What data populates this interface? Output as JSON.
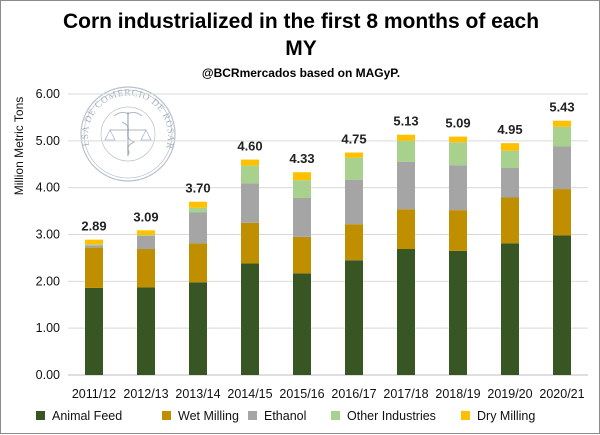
{
  "chart_data": {
    "type": "bar",
    "stacked": true,
    "title_lines": [
      "Corn industrialized in the first 8 months of each",
      "MY"
    ],
    "subtitle": "@BCRmercados based on MAGyP.",
    "xlabel": "",
    "ylabel": "Million Metric Tons",
    "ylim": [
      0,
      6
    ],
    "yticks": [
      "0.00",
      "1.00",
      "2.00",
      "3.00",
      "4.00",
      "5.00",
      "6.00"
    ],
    "grid": true,
    "legend_position": "bottom",
    "categories": [
      "2011/12",
      "2012/13",
      "2013/14",
      "2014/15",
      "2015/16",
      "2016/17",
      "2017/18",
      "2018/19",
      "2019/20",
      "2020/21"
    ],
    "series": [
      {
        "name": "Animal Feed",
        "color": "#375623",
        "values": [
          1.86,
          1.87,
          1.98,
          2.38,
          2.17,
          2.45,
          2.69,
          2.65,
          2.81,
          2.98
        ]
      },
      {
        "name": "Wet Milling",
        "color": "#bf8f00",
        "values": [
          0.86,
          0.82,
          0.83,
          0.87,
          0.78,
          0.77,
          0.85,
          0.87,
          0.98,
          0.99
        ]
      },
      {
        "name": "Ethanol",
        "color": "#a5a5a5",
        "values": [
          0.05,
          0.28,
          0.66,
          0.84,
          0.83,
          0.95,
          1.01,
          0.96,
          0.63,
          0.91
        ]
      },
      {
        "name": "Other Industries",
        "color": "#a9d18e",
        "values": [
          0.02,
          0.02,
          0.1,
          0.38,
          0.38,
          0.47,
          0.45,
          0.49,
          0.37,
          0.42
        ]
      },
      {
        "name": "Dry Milling",
        "color": "#ffc000",
        "values": [
          0.1,
          0.1,
          0.13,
          0.13,
          0.17,
          0.11,
          0.13,
          0.12,
          0.16,
          0.13
        ]
      }
    ],
    "totals": [
      "2.89",
      "3.09",
      "3.70",
      "4.60",
      "4.33",
      "4.75",
      "5.13",
      "5.09",
      "4.95",
      "5.43"
    ]
  },
  "watermark": {
    "description_text": "BOLSA DE COMERCIO DE ROSARIO",
    "icon": "caduceus-scales-seal-icon",
    "color": "#8a9aac"
  }
}
